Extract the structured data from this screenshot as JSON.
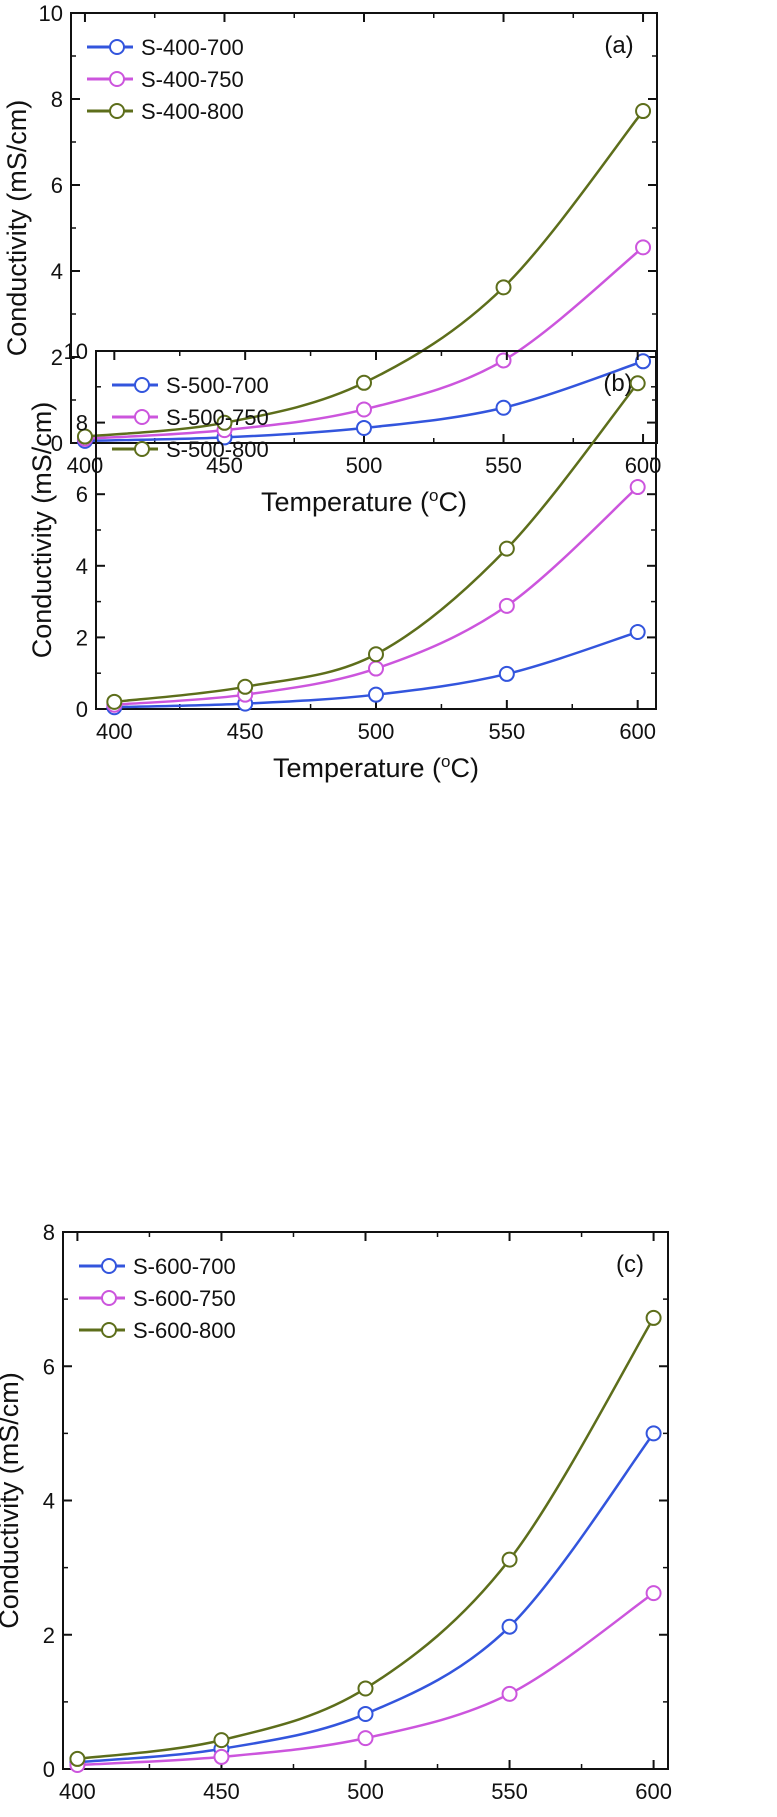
{
  "colors": {
    "S700": "#3355dd",
    "S750": "#cc55dd",
    "S800": "#5d6e1b",
    "axis": "#111111"
  },
  "chart_data": [
    {
      "type": "line",
      "panel_label": "(a)",
      "xlabel": "Temperature (",
      "xlabel_sup": "o",
      "xlabel_end": "C)",
      "ylabel": "Conductivity (mS/cm)",
      "xlim": [
        395,
        605
      ],
      "ylim": [
        0,
        10
      ],
      "xticks": [
        "400",
        "450",
        "500",
        "550",
        "600"
      ],
      "yticks": [
        "0",
        "2",
        "4",
        "6",
        "8",
        "10"
      ],
      "x": [
        400,
        450,
        500,
        550,
        600
      ],
      "legend_position": "top-left",
      "series": [
        {
          "name": "S-400-700",
          "color_key": "S700",
          "values": [
            0.05,
            0.13,
            0.35,
            0.82,
            1.9
          ]
        },
        {
          "name": "S-400-750",
          "color_key": "S750",
          "values": [
            0.1,
            0.3,
            0.78,
            1.92,
            4.55
          ]
        },
        {
          "name": "S-400-800",
          "color_key": "S800",
          "values": [
            0.15,
            0.47,
            1.4,
            3.62,
            7.72
          ]
        }
      ]
    },
    {
      "type": "line",
      "panel_label": "(b)",
      "xlabel": "Temperature (",
      "xlabel_sup": "o",
      "xlabel_end": "C)",
      "ylabel": "Conductivity (mS/cm)",
      "xlim": [
        393,
        607
      ],
      "ylim": [
        0,
        10
      ],
      "xticks": [
        "400",
        "450",
        "500",
        "550",
        "600"
      ],
      "yticks": [
        "0",
        "2",
        "4",
        "6",
        "8",
        "10"
      ],
      "x": [
        400,
        450,
        500,
        550,
        600
      ],
      "legend_position": "top-left",
      "series": [
        {
          "name": "S-500-700",
          "color_key": "S700",
          "values": [
            0.05,
            0.15,
            0.4,
            0.98,
            2.15
          ]
        },
        {
          "name": "S-500-750",
          "color_key": "S750",
          "values": [
            0.12,
            0.4,
            1.13,
            2.88,
            6.2
          ]
        },
        {
          "name": "S-500-800",
          "color_key": "S800",
          "values": [
            0.2,
            0.62,
            1.53,
            4.48,
            9.1
          ]
        }
      ]
    },
    {
      "type": "line",
      "panel_label": "(c)",
      "xlabel": "Temperature (",
      "xlabel_sup": "o",
      "xlabel_end": "C)",
      "ylabel": "Conductivity (mS/cm)",
      "xlim": [
        395,
        605
      ],
      "ylim": [
        0,
        8
      ],
      "xticks": [
        "400",
        "450",
        "500",
        "550",
        "600"
      ],
      "yticks": [
        "0",
        "2",
        "4",
        "6",
        "8"
      ],
      "x": [
        400,
        450,
        500,
        550,
        600
      ],
      "legend_position": "top-left",
      "series": [
        {
          "name": "S-600-700",
          "color_key": "S700",
          "values": [
            0.1,
            0.3,
            0.82,
            2.12,
            5.0
          ]
        },
        {
          "name": "S-600-750",
          "color_key": "S750",
          "values": [
            0.06,
            0.18,
            0.46,
            1.12,
            2.62
          ]
        },
        {
          "name": "S-600-800",
          "color_key": "S800",
          "values": [
            0.15,
            0.43,
            1.2,
            3.12,
            6.72
          ]
        }
      ]
    }
  ]
}
